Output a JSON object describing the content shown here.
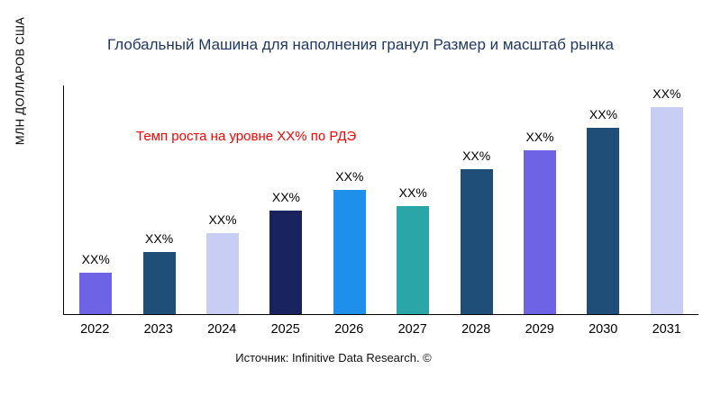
{
  "title": "Глобальный Машина для наполнения гранул Размер и масштаб рынка",
  "y_axis_label": "МЛН ДОЛЛАРОВ США",
  "annotation": "Темп роста на уровне XX% по РДЭ",
  "source": "Источник: Infinitive Data Research. ©",
  "colors": {
    "title": "#1F3864",
    "annotation": "#FF0000",
    "axis": "#000000",
    "background": "#FFFFFF"
  },
  "chart_data": {
    "type": "bar",
    "title": "Глобальный Машина для наполнения гранул Размер и масштаб рынка",
    "xlabel": "",
    "ylabel": "МЛН ДОЛЛАРОВ США",
    "categories": [
      "2022",
      "2023",
      "2024",
      "2025",
      "2026",
      "2027",
      "2028",
      "2029",
      "2030",
      "2031"
    ],
    "values": [
      20,
      30,
      39,
      50,
      60,
      52,
      70,
      79,
      90,
      100
    ],
    "values_note": "relative heights; actual values masked as XX% in source image",
    "bar_labels": [
      "XX%",
      "XX%",
      "XX%",
      "XX%",
      "XX%",
      "XX%",
      "XX%",
      "XX%",
      "XX%",
      "XX%"
    ],
    "bar_colors": [
      "#6E62E5",
      "#1F4E79",
      "#C8CDF4",
      "#19245F",
      "#1E8FEA",
      "#2AA5A8",
      "#1F4E79",
      "#6E62E5",
      "#1F4E79",
      "#C8CDF4"
    ],
    "ylim": [
      0,
      100
    ],
    "grid": false,
    "legend": false,
    "annotation": "Темп роста на уровне XX% по РДЭ"
  }
}
